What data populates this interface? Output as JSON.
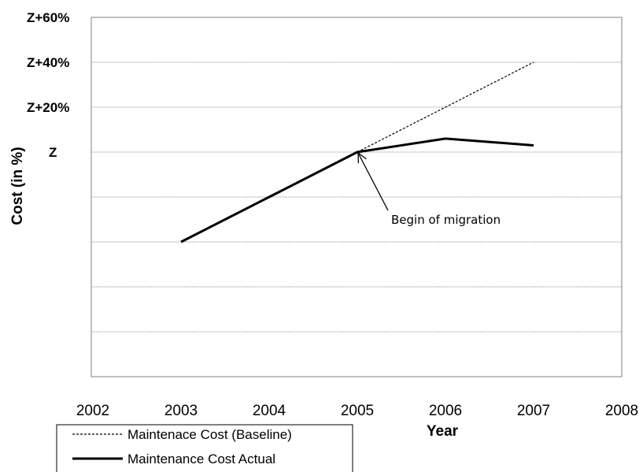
{
  "chart_data": {
    "type": "line",
    "xlabel": "Year",
    "ylabel": "Cost (in %)",
    "xlim": [
      2002,
      2008
    ],
    "x_ticks": [
      "2002",
      "2003",
      "2004",
      "2005",
      "2006",
      "2007",
      "2008"
    ],
    "ylim": [
      -100,
      60
    ],
    "y_tick_labels": [
      {
        "value": 60,
        "label": "Z+60%"
      },
      {
        "value": 40,
        "label": "Z+40%"
      },
      {
        "value": 20,
        "label": "Z+20%"
      },
      {
        "value": 0,
        "label": "Z"
      }
    ],
    "y_gridlines": [
      40,
      20,
      0,
      -20,
      -40,
      -60,
      -80
    ],
    "grid": true,
    "series": [
      {
        "name": "Maintenace Cost (Baseline)",
        "style": "dashed",
        "points": [
          [
            2005,
            0
          ],
          [
            2007,
            40
          ]
        ]
      },
      {
        "name": "Maintenance Cost Actual",
        "style": "solid-thick",
        "points": [
          [
            2003,
            -40
          ],
          [
            2004,
            -20
          ],
          [
            2005,
            0
          ],
          [
            2006,
            6
          ],
          [
            2007,
            3
          ]
        ]
      }
    ],
    "annotations": [
      {
        "text": "Begin of migration",
        "target": [
          2005,
          0
        ]
      }
    ],
    "legend_position": "bottom-left"
  }
}
